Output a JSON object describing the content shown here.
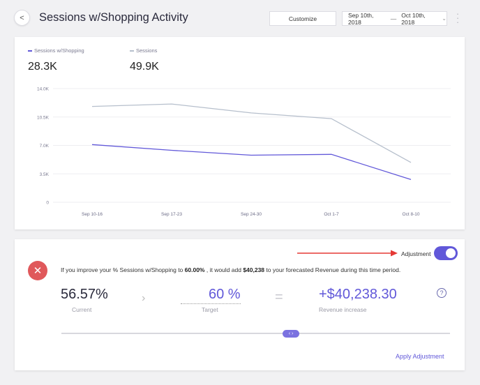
{
  "header": {
    "back_label": "<",
    "title": "Sessions w/Shopping Activity",
    "customize_label": "Customize",
    "date_from": "Sep 10th, 2018",
    "date_separator": "—",
    "date_to": "Oct 10th, 2018",
    "date_chevron_icon": "chevron-down-icon",
    "more_icon": "vertical-dots-icon"
  },
  "legend": [
    {
      "label": "Sessions w/Shopping",
      "value": "28.3K",
      "color": "#6158d9"
    },
    {
      "label": "Sessions",
      "value": "49.9K",
      "color": "#b6bfcc"
    }
  ],
  "chart_data": {
    "type": "line",
    "categories": [
      "Sep 10-16",
      "Sep 17-23",
      "Sep 24-30",
      "Oct 1-7",
      "Oct 8-10"
    ],
    "y_ticks": [
      "0",
      "3.5K",
      "7.0K",
      "10.5K",
      "14.0K"
    ],
    "ylim": [
      0,
      14000
    ],
    "grid": true,
    "series": [
      {
        "name": "Sessions w/Shopping",
        "color": "#6158d9",
        "values": [
          7100,
          6400,
          5800,
          5900,
          2800
        ]
      },
      {
        "name": "Sessions",
        "color": "#b6bfcc",
        "values": [
          11800,
          12100,
          11000,
          10300,
          4900
        ]
      }
    ]
  },
  "adjustment": {
    "label": "Adjustment",
    "enabled": true,
    "arrow_color": "#e53935",
    "cancel_icon": "close-icon",
    "sentence": {
      "part1": "If you improve your % Sessions w/Shopping to ",
      "target_pct": "60.00%",
      "part2": " , it would add ",
      "amount": "$40,238",
      "part3": " to your forecasted Revenue during this time period."
    },
    "current_value": "56.57%",
    "current_label": "Current",
    "target_value": "60 %",
    "target_label": "Target",
    "increase_value": "+$40,238.30",
    "increase_label": "Revenue increase",
    "help_icon": "question-icon",
    "help_glyph": "?",
    "slider_glyph": "‹ ›",
    "slider_level": 0.6,
    "apply_label": "Apply Adjustment",
    "accent_color": "#6158d9"
  }
}
